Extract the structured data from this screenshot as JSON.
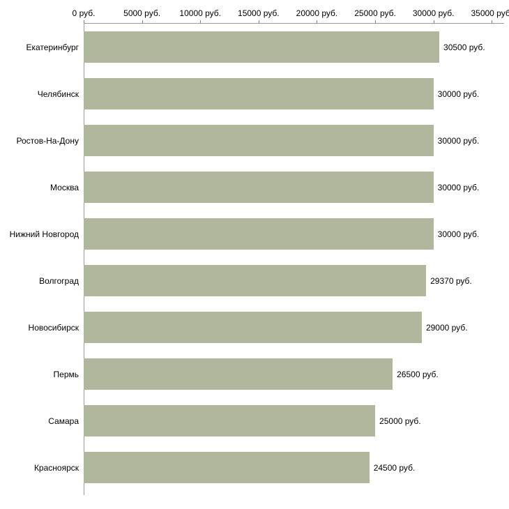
{
  "chart_data": {
    "type": "bar",
    "orientation": "horizontal",
    "title": "",
    "categories": [
      "Екатеринбург",
      "Челябинск",
      "Ростов-На-Дону",
      "Москва",
      "Нижний Новгород",
      "Волгоград",
      "Новосибирск",
      "Пермь",
      "Самара",
      "Красноярск"
    ],
    "values": [
      30500,
      30000,
      30000,
      30000,
      30000,
      29370,
      29000,
      26500,
      25000,
      24500
    ],
    "value_labels": [
      "30500 руб.",
      "30000 руб.",
      "30000 руб.",
      "30000 руб.",
      "30000 руб.",
      "29370 руб.",
      "29000 руб.",
      "26500 руб.",
      "25000 руб.",
      "24500 руб."
    ],
    "x_ticks": [
      0,
      5000,
      10000,
      15000,
      20000,
      25000,
      30000,
      35000
    ],
    "x_tick_labels": [
      "0 руб.",
      "5000 руб.",
      "10000 руб.",
      "15000 руб.",
      "20000 руб.",
      "25000 руб.",
      "30000 руб.",
      "35000 руб."
    ],
    "xlim": [
      0,
      36000
    ],
    "ylabel": "",
    "xlabel": "",
    "bar_color": "#b1b79c",
    "axis_color": "#9a9a9a",
    "tick_color": "#808080",
    "text_color": "#000000",
    "background": "#ffffff",
    "grid": false,
    "legend": false
  }
}
